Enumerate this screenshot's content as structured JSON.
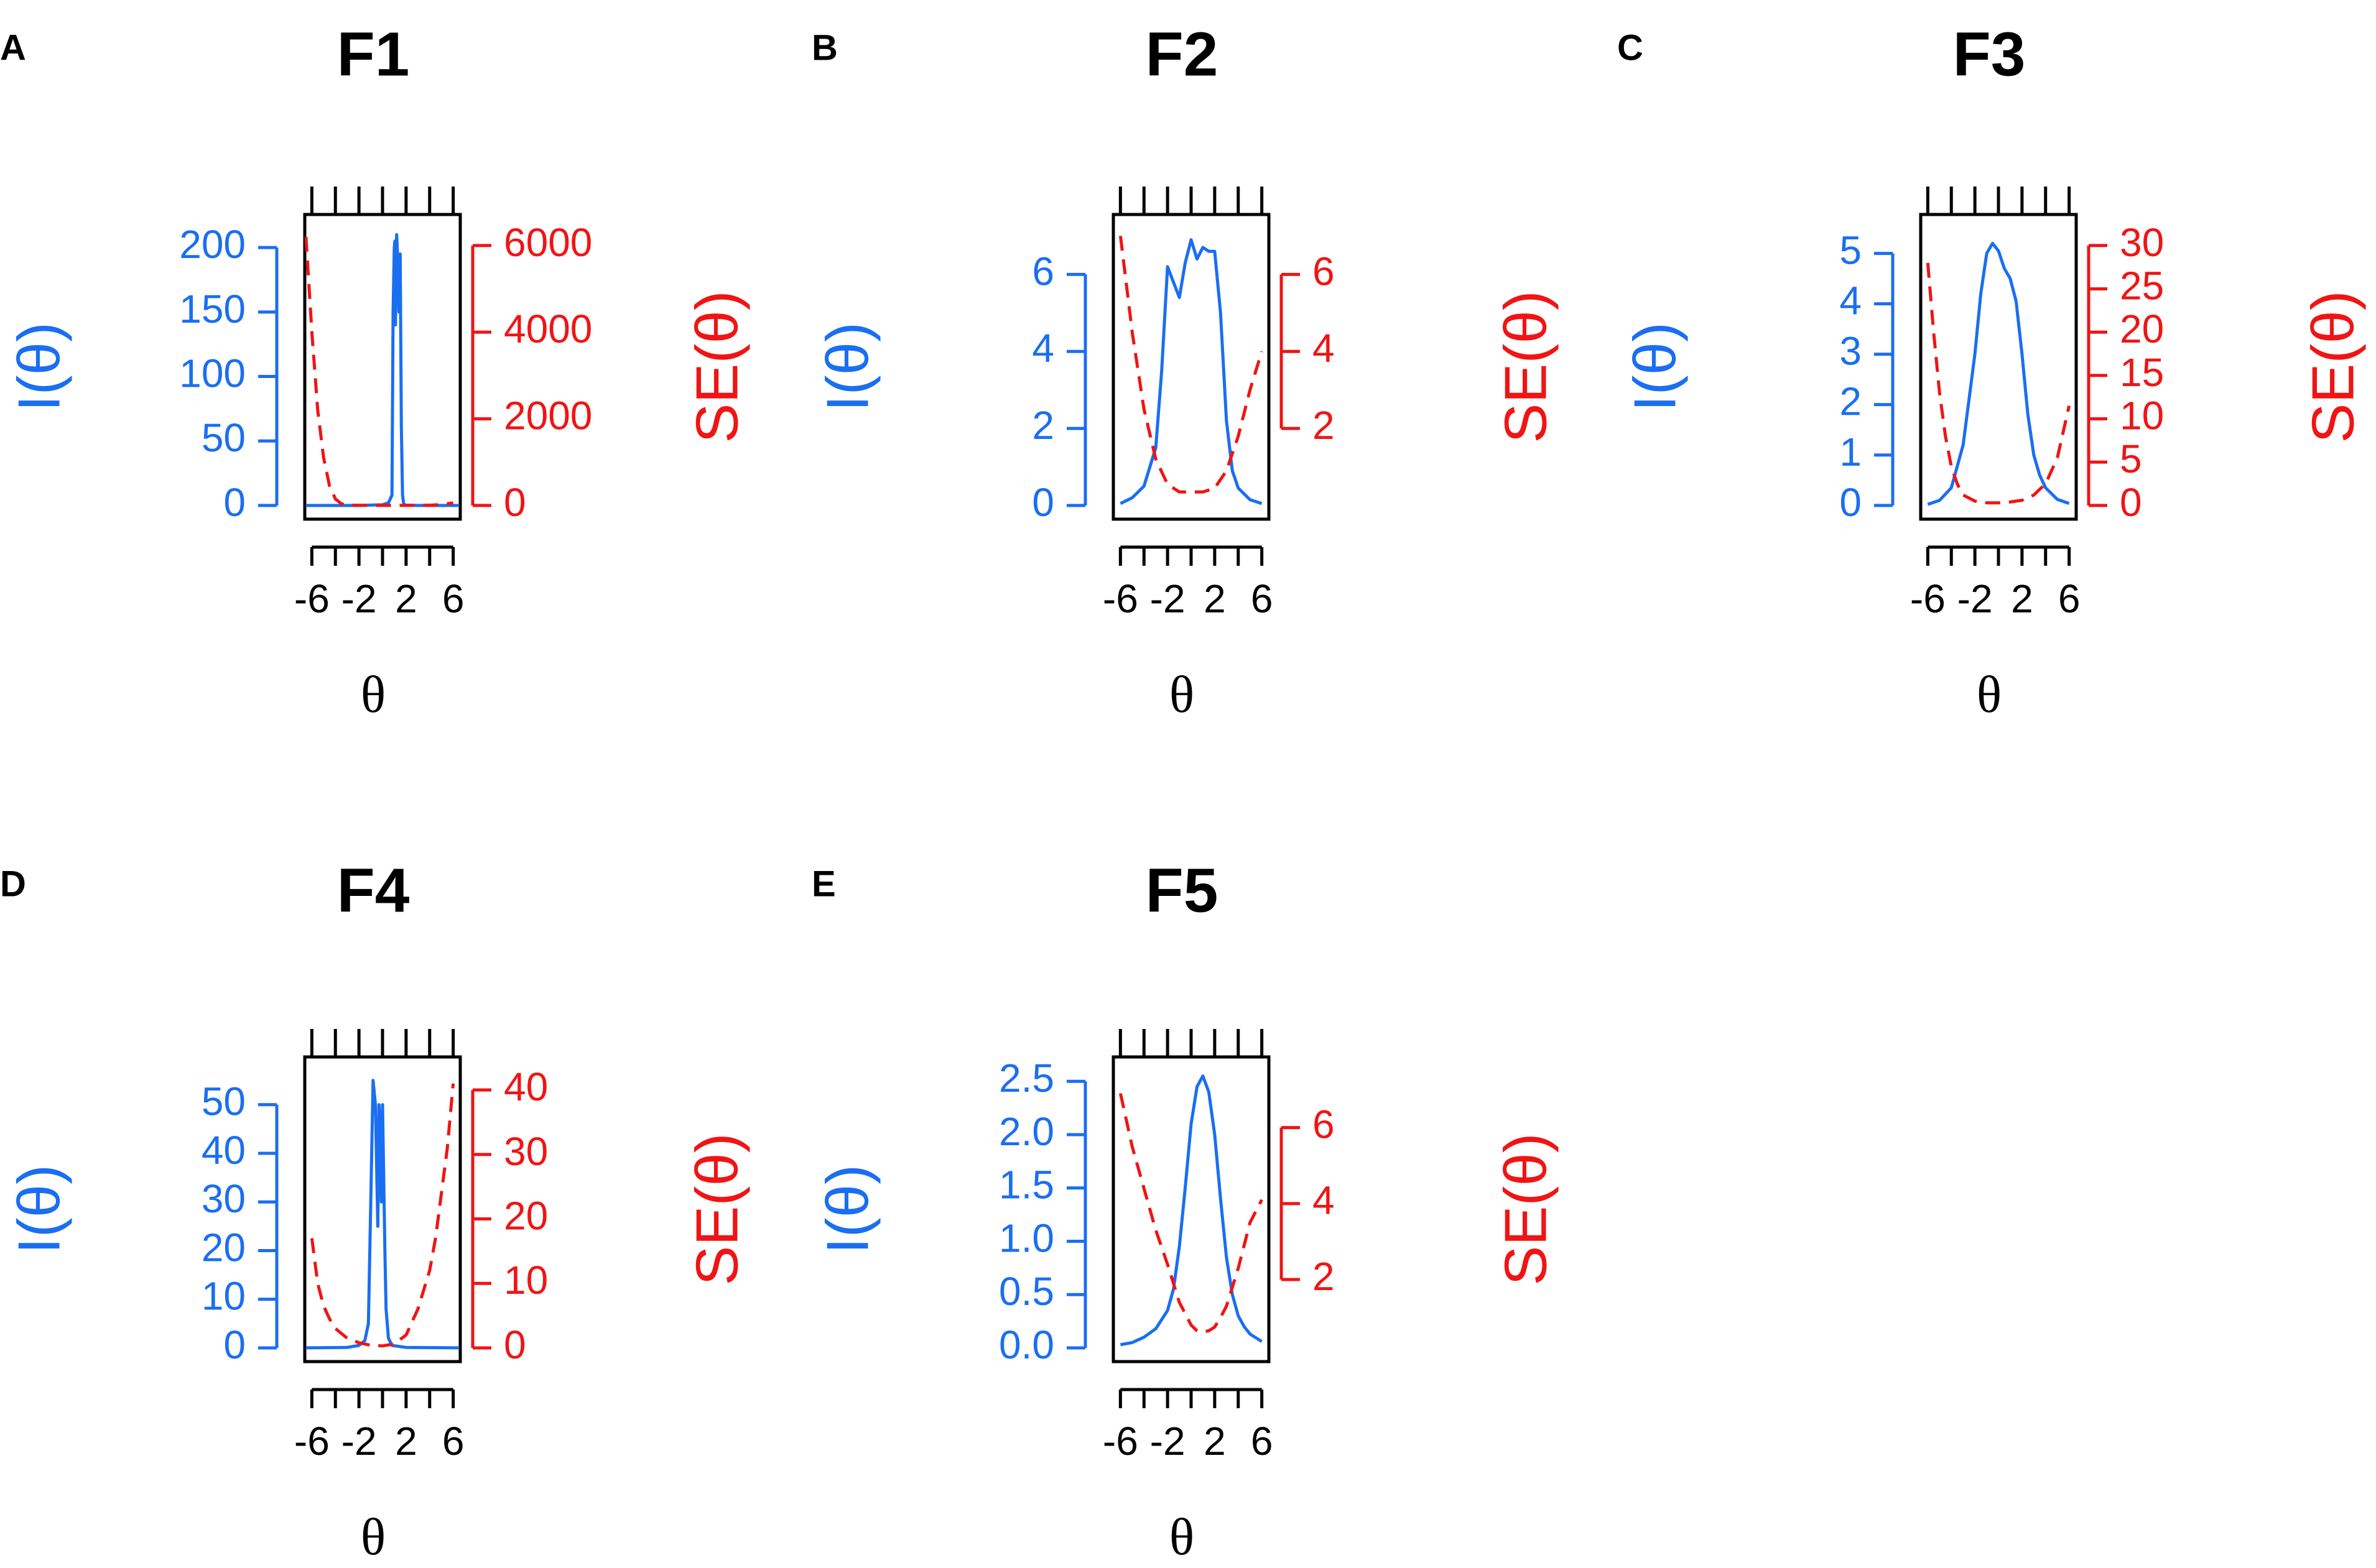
{
  "colors": {
    "info": "#1a6ef2",
    "se": "#f01414",
    "axis": "#000000"
  },
  "chart_data": [
    {
      "type": "line",
      "panel_letter": "A",
      "title": "F1",
      "xlabel": "θ",
      "ylabel_left": "I(θ)",
      "ylabel_right": "SE(θ)",
      "x_ticks": [
        -6,
        -4,
        -2,
        0,
        2,
        4,
        6
      ],
      "x_tick_labels": [
        "-6",
        "-2",
        "2",
        "6"
      ],
      "x_tick_label_values": [
        -6,
        -2,
        2,
        6
      ],
      "left_axis": {
        "ylim": [
          0,
          215
        ],
        "ticks": [
          0,
          50,
          100,
          150,
          200
        ],
        "labels": [
          "0",
          "50",
          "100",
          "150",
          "200"
        ]
      },
      "right_axis": {
        "ylim": [
          0,
          6400
        ],
        "ticks": [
          0,
          2000,
          4000,
          6000
        ],
        "labels": [
          "0",
          "2000",
          "4000",
          "6000"
        ]
      },
      "series": [
        {
          "name": "I(θ)",
          "axis": "left",
          "style": "solid",
          "x": [
            -6.5,
            -2,
            0,
            0.5,
            0.8,
            0.9,
            1.0,
            1.05,
            1.1,
            1.2,
            1.3,
            1.4,
            1.5,
            1.6,
            1.7,
            1.8,
            2.0,
            3,
            6.5
          ],
          "y": [
            0,
            0,
            0.5,
            2,
            8,
            150,
            200,
            205,
            140,
            210,
            190,
            150,
            195,
            60,
            8,
            1,
            0.2,
            0,
            0
          ]
        },
        {
          "name": "SE(θ)",
          "axis": "right",
          "style": "dashed",
          "x": [
            -6.5,
            -6,
            -5.5,
            -5,
            -4.5,
            -4,
            -3.5,
            -3,
            -2,
            0,
            2,
            4,
            5,
            6
          ],
          "y": [
            6200,
            4000,
            2200,
            1100,
            450,
            150,
            40,
            10,
            3,
            1,
            1,
            5,
            20,
            60
          ]
        }
      ]
    },
    {
      "type": "line",
      "panel_letter": "B",
      "title": "F2",
      "xlabel": "θ",
      "ylabel_left": "I(θ)",
      "ylabel_right": "SE(θ)",
      "x_ticks": [
        -6,
        -4,
        -2,
        0,
        2,
        4,
        6
      ],
      "x_tick_labels": [
        "-6",
        "-2",
        "2",
        "6"
      ],
      "x_tick_label_values": [
        -6,
        -2,
        2,
        6
      ],
      "left_axis": {
        "ylim": [
          0,
          7.2
        ],
        "ticks": [
          0,
          2,
          4,
          6
        ],
        "labels": [
          "0",
          "2",
          "4",
          "6"
        ]
      },
      "right_axis": {
        "ylim": [
          0,
          7.2
        ],
        "ticks": [
          2,
          4,
          6
        ],
        "labels": [
          "2",
          "4",
          "6"
        ]
      },
      "series": [
        {
          "name": "I(θ)",
          "axis": "left",
          "style": "solid",
          "x": [
            -6,
            -5,
            -4,
            -3,
            -2.5,
            -2,
            -1.5,
            -1,
            -0.5,
            0,
            0.5,
            1,
            1.5,
            2,
            2.5,
            3,
            3.5,
            4,
            5,
            6
          ],
          "y": [
            0.05,
            0.2,
            0.5,
            1.5,
            3.5,
            6.2,
            5.8,
            5.4,
            6.3,
            6.9,
            6.4,
            6.7,
            6.6,
            6.6,
            5,
            2.2,
            0.9,
            0.45,
            0.15,
            0.05
          ]
        },
        {
          "name": "SE(θ)",
          "axis": "right",
          "style": "dashed",
          "x": [
            -6,
            -5,
            -4,
            -3,
            -2,
            -1,
            0,
            1,
            2,
            3,
            4,
            5,
            6
          ],
          "y": [
            7.0,
            4.5,
            2.5,
            1.2,
            0.55,
            0.35,
            0.35,
            0.35,
            0.45,
            0.9,
            1.8,
            3.0,
            4.0
          ]
        }
      ]
    },
    {
      "type": "line",
      "panel_letter": "C",
      "title": "F3",
      "xlabel": "θ",
      "ylabel_left": "I(θ)",
      "ylabel_right": "SE(θ)",
      "x_ticks": [
        -6,
        -4,
        -2,
        0,
        2,
        4,
        6
      ],
      "x_tick_labels": [
        "-6",
        "-2",
        "2",
        "6"
      ],
      "x_tick_label_values": [
        -6,
        -2,
        2,
        6
      ],
      "left_axis": {
        "ylim": [
          0,
          5.5
        ],
        "ticks": [
          0,
          1,
          2,
          3,
          4,
          5
        ],
        "labels": [
          "0",
          "1",
          "2",
          "3",
          "4",
          "5"
        ]
      },
      "right_axis": {
        "ylim": [
          0,
          32
        ],
        "ticks": [
          0,
          5,
          10,
          15,
          20,
          25,
          30
        ],
        "labels": [
          "0",
          "5",
          "10",
          "15",
          "20",
          "25",
          "30"
        ]
      },
      "series": [
        {
          "name": "I(θ)",
          "axis": "left",
          "style": "solid",
          "x": [
            -6,
            -5,
            -4,
            -3,
            -2,
            -1.5,
            -1,
            -0.5,
            0,
            0.5,
            1,
            1.5,
            2,
            2.5,
            3,
            3.5,
            4,
            5,
            6
          ],
          "y": [
            0.02,
            0.1,
            0.35,
            1.2,
            3.0,
            4.2,
            5.0,
            5.2,
            5.05,
            4.7,
            4.5,
            4.05,
            3.0,
            1.8,
            1.0,
            0.6,
            0.35,
            0.12,
            0.04
          ]
        },
        {
          "name": "SE(θ)",
          "axis": "right",
          "style": "dashed",
          "x": [
            -6,
            -5.5,
            -5,
            -4.5,
            -4,
            -3.5,
            -3,
            -2,
            -1,
            0,
            1,
            2,
            3,
            4,
            5,
            6
          ],
          "y": [
            28,
            20,
            13,
            8,
            4.5,
            2.5,
            1.2,
            0.5,
            0.3,
            0.3,
            0.4,
            0.6,
            1.2,
            2.5,
            5.5,
            11.5
          ]
        }
      ]
    },
    {
      "type": "line",
      "panel_letter": "D",
      "title": "F4",
      "xlabel": "θ",
      "ylabel_left": "I(θ)",
      "ylabel_right": "SE(θ)",
      "x_ticks": [
        -6,
        -4,
        -2,
        0,
        2,
        4,
        6
      ],
      "x_tick_labels": [
        "-6",
        "-2",
        "2",
        "6"
      ],
      "x_tick_label_values": [
        -6,
        -2,
        2,
        6
      ],
      "left_axis": {
        "ylim": [
          0,
          57
        ],
        "ticks": [
          0,
          10,
          20,
          30,
          40,
          50
        ],
        "labels": [
          "0",
          "10",
          "20",
          "30",
          "40",
          "50"
        ]
      },
      "right_axis": {
        "ylim": [
          0,
          43
        ],
        "ticks": [
          0,
          10,
          20,
          30,
          40
        ],
        "labels": [
          "0",
          "10",
          "20",
          "30",
          "40"
        ]
      },
      "series": [
        {
          "name": "I(θ)",
          "axis": "left",
          "style": "solid",
          "x": [
            -6.5,
            -3,
            -2,
            -1.5,
            -1.2,
            -1.0,
            -0.8,
            -0.6,
            -0.4,
            -0.3,
            -0.2,
            -0.1,
            0.0,
            0.1,
            0.2,
            0.3,
            0.5,
            0.8,
            2,
            6.5
          ],
          "y": [
            0,
            0.1,
            0.5,
            1.5,
            5,
            30,
            55,
            50,
            25,
            50,
            45,
            30,
            50,
            35,
            20,
            8,
            2,
            0.5,
            0.1,
            0
          ]
        },
        {
          "name": "SE(θ)",
          "axis": "right",
          "style": "dashed",
          "x": [
            -6,
            -5.5,
            -5,
            -4.5,
            -4,
            -3,
            -2,
            -1,
            0,
            1,
            2,
            3,
            4,
            4.5,
            5,
            5.5,
            6
          ],
          "y": [
            17,
            10,
            6.5,
            4.5,
            3.0,
            1.5,
            0.8,
            0.4,
            0.3,
            0.6,
            2.0,
            6.0,
            12,
            17,
            24,
            31,
            41
          ]
        }
      ]
    },
    {
      "type": "line",
      "panel_letter": "E",
      "title": "F5",
      "xlabel": "θ",
      "ylabel_left": "I(θ)",
      "ylabel_right": "SE(θ)",
      "x_ticks": [
        -6,
        -4,
        -2,
        0,
        2,
        4,
        6
      ],
      "x_tick_labels": [
        "-6",
        "-2",
        "2",
        "6"
      ],
      "x_tick_label_values": [
        -6,
        -2,
        2,
        6
      ],
      "left_axis": {
        "ylim": [
          0,
          2.6
        ],
        "ticks": [
          0.0,
          0.5,
          1.0,
          1.5,
          2.0,
          2.5
        ],
        "labels": [
          "0.0",
          "0.5",
          "1.0",
          "1.5",
          "2.0",
          "2.5"
        ]
      },
      "right_axis": {
        "ylim": [
          0.2,
          7.5
        ],
        "ticks": [
          2,
          4,
          6
        ],
        "labels": [
          "2",
          "4",
          "6"
        ]
      },
      "series": [
        {
          "name": "I(θ)",
          "axis": "left",
          "style": "solid",
          "x": [
            -6,
            -5,
            -4,
            -3,
            -2,
            -1.5,
            -1,
            -0.5,
            0,
            0.5,
            1,
            1.5,
            2,
            2.5,
            3,
            3.5,
            4,
            4.5,
            5,
            6
          ],
          "y": [
            0.03,
            0.05,
            0.1,
            0.18,
            0.35,
            0.55,
            0.95,
            1.5,
            2.1,
            2.45,
            2.55,
            2.4,
            2.0,
            1.4,
            0.85,
            0.5,
            0.3,
            0.2,
            0.13,
            0.06
          ]
        },
        {
          "name": "SE(θ)",
          "axis": "right",
          "style": "dashed",
          "x": [
            -6,
            -5,
            -4,
            -3,
            -2,
            -1,
            0,
            0.5,
            1,
            1.5,
            2,
            2.5,
            3,
            4,
            5,
            6
          ],
          "y": [
            6.9,
            5.5,
            4.4,
            3.3,
            2.4,
            1.4,
            0.8,
            0.65,
            0.62,
            0.65,
            0.75,
            1.0,
            1.3,
            2.3,
            3.5,
            4.1
          ]
        }
      ]
    }
  ]
}
